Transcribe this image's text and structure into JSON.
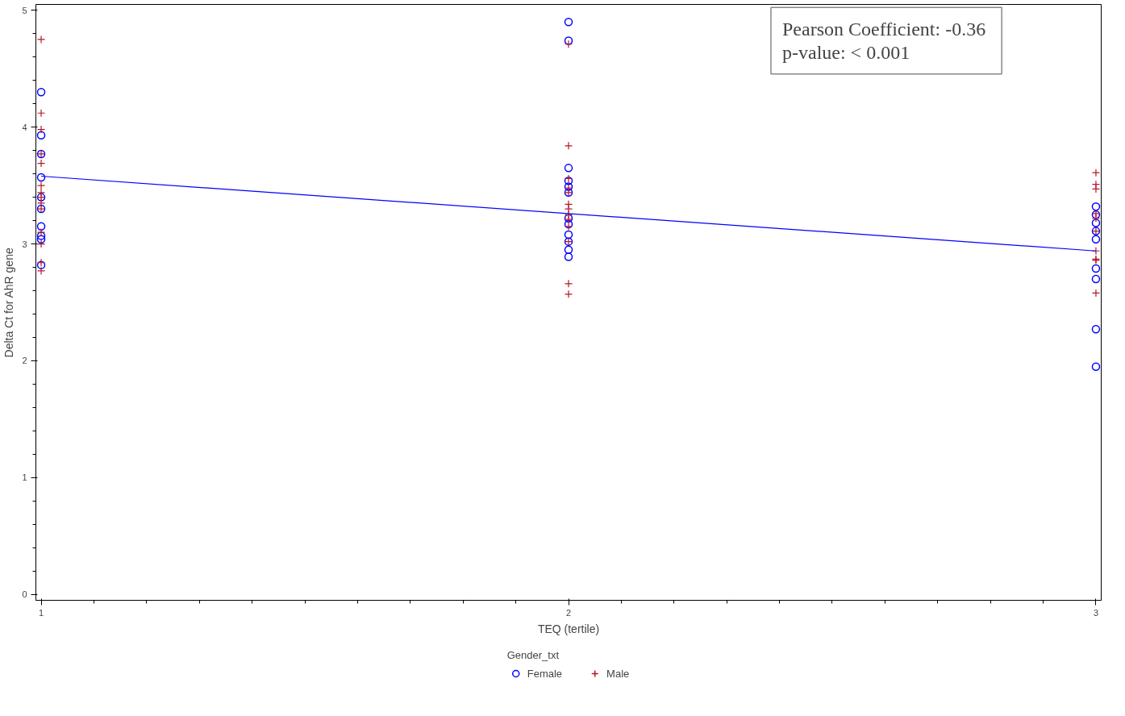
{
  "chart_data": {
    "type": "scatter",
    "xlabel": "TEQ (tertile)",
    "ylabel": "Delta Ct for AhR gene",
    "legend_title": "Gender_txt",
    "legend": "bottom",
    "grid": false,
    "xlim": [
      0.99,
      3.01
    ],
    "ylim": [
      -0.05,
      5.05
    ],
    "xticks": [
      1,
      2,
      3
    ],
    "yticks": [
      0,
      1,
      2,
      3,
      4,
      5
    ],
    "annotations": [
      "Pearson Coefficient:  -0.36",
      "p-value:  < 0.001"
    ],
    "series": [
      {
        "name": "Female",
        "color": "#0000ff",
        "marker": "circle",
        "x": [
          1,
          1,
          1,
          1,
          1,
          1,
          1,
          1,
          1,
          1,
          2,
          2,
          2,
          2,
          2,
          2,
          2,
          2,
          2,
          2,
          2,
          2,
          3,
          3,
          3,
          3,
          3,
          3,
          3,
          3,
          3
        ],
        "values": [
          4.3,
          3.93,
          3.77,
          3.57,
          3.4,
          3.3,
          3.15,
          3.07,
          3.04,
          2.82,
          4.9,
          4.74,
          3.65,
          3.54,
          3.49,
          3.44,
          3.22,
          3.17,
          3.08,
          3.02,
          2.95,
          2.89,
          3.32,
          3.25,
          3.18,
          3.11,
          3.04,
          2.79,
          2.7,
          2.27,
          1.95
        ]
      },
      {
        "name": "Male",
        "color": "#b2182b",
        "marker": "cross",
        "x": [
          1,
          1,
          1,
          1,
          1,
          1,
          1,
          1,
          1,
          1,
          1,
          1,
          1,
          1,
          2,
          2,
          2,
          2,
          2,
          2,
          2,
          2,
          2,
          2,
          2,
          2,
          2,
          3,
          3,
          3,
          3,
          3,
          3,
          3,
          3,
          3,
          3
        ],
        "values": [
          4.75,
          4.12,
          3.98,
          3.77,
          3.69,
          3.5,
          3.44,
          3.4,
          3.35,
          3.3,
          3.1,
          3.0,
          2.84,
          2.77,
          4.71,
          3.84,
          3.56,
          3.48,
          3.44,
          3.34,
          3.3,
          3.25,
          3.21,
          3.15,
          3.02,
          2.66,
          2.57,
          3.61,
          3.51,
          3.47,
          3.26,
          3.22,
          3.11,
          2.94,
          2.87,
          2.86,
          2.58
        ]
      },
      {
        "type": "line",
        "color": "#0000ff",
        "marker": "none",
        "x": [
          1,
          3
        ],
        "values": [
          3.58,
          2.94
        ]
      }
    ]
  }
}
